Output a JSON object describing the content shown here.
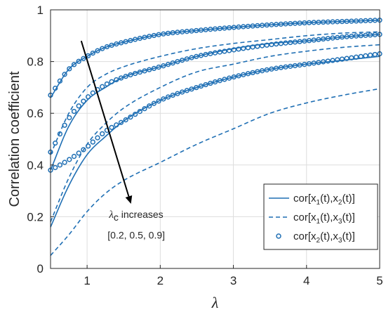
{
  "chart_data": {
    "type": "line",
    "xlabel": "λ",
    "ylabel": "Correlation coefficient",
    "xlim": [
      0.5,
      5
    ],
    "ylim": [
      0,
      1
    ],
    "xticks": [
      "1",
      "2",
      "3",
      "4",
      "5"
    ],
    "yticks": [
      "0",
      "0.2",
      "0.4",
      "0.6",
      "0.8",
      "1"
    ],
    "grid": true,
    "legend_position": "bottom-right",
    "legend": [
      {
        "label_main": "cor[x",
        "sub1": "1",
        "mid": "(t),x",
        "sub2": "2",
        "tail": "(t)]",
        "style": "solid"
      },
      {
        "label_main": "cor[x",
        "sub1": "1",
        "mid": "(t),x",
        "sub2": "3",
        "tail": "(t)]",
        "style": "dashed"
      },
      {
        "label_main": "cor[x",
        "sub1": "2",
        "mid": "(t),x",
        "sub2": "3",
        "tail": "(t)]",
        "style": "markers"
      }
    ],
    "color": "#1f6fb4",
    "x": [
      0.5,
      0.75,
      1.0,
      1.25,
      1.5,
      2.0,
      2.5,
      3.0,
      3.5,
      4.0,
      4.5,
      5.0
    ],
    "series": [
      {
        "group": "0.2",
        "style": "solid",
        "values": [
          0.66,
          0.77,
          0.82,
          0.855,
          0.875,
          0.905,
          0.92,
          0.932,
          0.942,
          0.95,
          0.955,
          0.96
        ]
      },
      {
        "group": "0.2",
        "style": "markers",
        "values": [
          0.67,
          0.77,
          0.82,
          0.855,
          0.875,
          0.905,
          0.92,
          0.932,
          0.942,
          0.95,
          0.955,
          0.96
        ]
      },
      {
        "group": "0.2",
        "style": "dashed",
        "values": [
          0.44,
          0.6,
          0.7,
          0.75,
          0.78,
          0.82,
          0.85,
          0.87,
          0.885,
          0.9,
          0.91,
          0.915
        ]
      },
      {
        "group": "0.5",
        "style": "solid",
        "values": [
          0.38,
          0.55,
          0.65,
          0.7,
          0.74,
          0.78,
          0.82,
          0.85,
          0.87,
          0.88,
          0.895,
          0.905
        ]
      },
      {
        "group": "0.5",
        "style": "markers",
        "values": [
          0.45,
          0.58,
          0.66,
          0.71,
          0.74,
          0.78,
          0.82,
          0.845,
          0.865,
          0.88,
          0.895,
          0.905
        ]
      },
      {
        "group": "0.5",
        "style": "dashed",
        "values": [
          0.18,
          0.35,
          0.48,
          0.56,
          0.62,
          0.7,
          0.76,
          0.79,
          0.82,
          0.84,
          0.855,
          0.865
        ]
      },
      {
        "group": "0.9",
        "style": "solid",
        "values": [
          0.16,
          0.32,
          0.44,
          0.51,
          0.57,
          0.65,
          0.7,
          0.74,
          0.77,
          0.79,
          0.805,
          0.82
        ]
      },
      {
        "group": "0.9",
        "style": "markers",
        "values": [
          0.38,
          0.42,
          0.47,
          0.53,
          0.57,
          0.65,
          0.7,
          0.74,
          0.77,
          0.79,
          0.81,
          0.83
        ]
      },
      {
        "group": "0.9",
        "style": "dashed",
        "values": [
          0.05,
          0.13,
          0.22,
          0.29,
          0.34,
          0.41,
          0.48,
          0.54,
          0.6,
          0.64,
          0.67,
          0.695
        ]
      }
    ],
    "annotation": {
      "symbol": "λ",
      "sub": "c",
      "text": " increases",
      "values": "[0.2, 0.5, 0.9]",
      "arrow_from": [
        0.92,
        0.88
      ],
      "arrow_to": [
        1.6,
        0.25
      ],
      "label_at": [
        1.3,
        0.195
      ],
      "values_at": [
        1.28,
        0.115
      ]
    }
  }
}
